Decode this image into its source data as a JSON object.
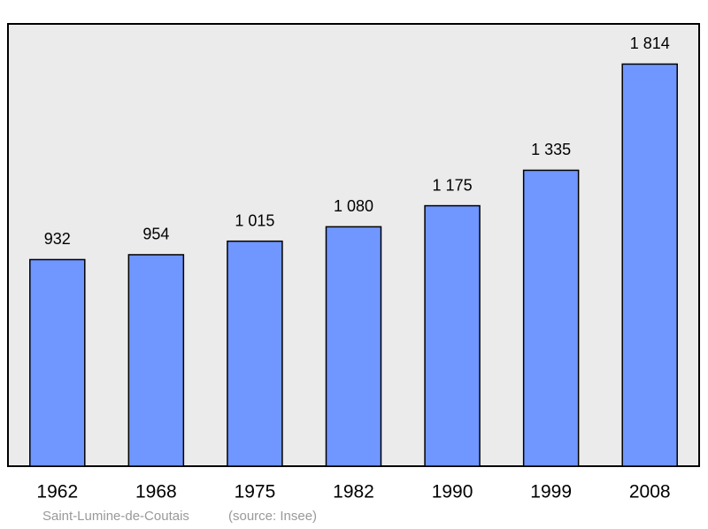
{
  "chart_data": {
    "type": "bar",
    "categories": [
      "1962",
      "1968",
      "1975",
      "1982",
      "1990",
      "1999",
      "2008"
    ],
    "values": [
      932,
      954,
      1015,
      1080,
      1175,
      1335,
      1814
    ],
    "value_labels": [
      "932",
      "954",
      "1 015",
      "1 080",
      "1 175",
      "1 335",
      "1 814"
    ],
    "color": "#7096ff",
    "place": "Saint-Lumine-de-Coutais",
    "source": "(source: Insee)"
  }
}
